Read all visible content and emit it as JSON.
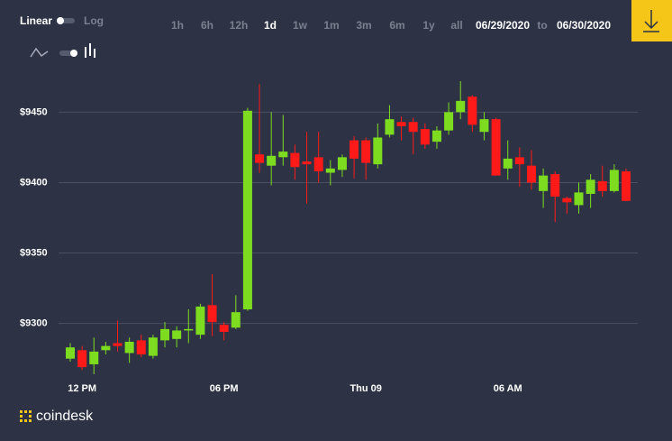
{
  "controls": {
    "scale_linear": "Linear",
    "scale_log": "Log",
    "timeframes": [
      "1h",
      "6h",
      "12h",
      "1d",
      "1w",
      "1m",
      "3m",
      "6m",
      "1y",
      "all"
    ],
    "date_from": "06/29/2020",
    "date_sep": "to",
    "date_to": "06/30/2020"
  },
  "brand": "coindesk",
  "chart_data": {
    "type": "candlestick",
    "categories": [
      null,
      "12 PM",
      null,
      null,
      null,
      null,
      null,
      null,
      null,
      null,
      null,
      null,
      null,
      "06 PM",
      null,
      null,
      null,
      null,
      null,
      null,
      null,
      null,
      null,
      null,
      null,
      "Thu 09",
      null,
      null,
      null,
      null,
      null,
      null,
      null,
      null,
      null,
      null,
      null,
      "06 AM",
      null,
      null,
      null,
      null,
      null,
      null,
      null,
      null,
      null,
      null
    ],
    "open": [
      9275,
      9281,
      9271,
      9281,
      9286,
      9279,
      9288,
      9277,
      9288,
      9289,
      9295,
      9292,
      9313,
      9299,
      9297,
      9310,
      9420,
      9412,
      9418,
      9421,
      9415,
      9418,
      9407,
      9409,
      9430,
      9430,
      9413,
      9434,
      9443,
      9443,
      9438,
      9429,
      9437,
      9450,
      9461,
      9436,
      9445,
      9410,
      9418,
      9412,
      9394,
      9406,
      9389,
      9384,
      9392,
      9401,
      9394,
      9408
    ],
    "high": [
      9286,
      9284,
      9290,
      9287,
      9302,
      9290,
      9292,
      9292,
      9301,
      9298,
      9310,
      9314,
      9335,
      9301,
      9320,
      9453,
      9470,
      9450,
      9448,
      9427,
      9436,
      9436,
      9416,
      9420,
      9433,
      9432,
      9442,
      9455,
      9447,
      9446,
      9442,
      9440,
      9457,
      9472,
      9462,
      9450,
      9446,
      9430,
      9425,
      9423,
      9410,
      9408,
      9390,
      9400,
      9406,
      9412,
      9413,
      9410
    ],
    "low": [
      9273,
      9267,
      9264,
      9278,
      9280,
      9272,
      9276,
      9275,
      9283,
      9283,
      9286,
      9289,
      9291,
      9288,
      9296,
      9309,
      9407,
      9398,
      9412,
      9402,
      9385,
      9400,
      9398,
      9404,
      9403,
      9402,
      9410,
      9432,
      9430,
      9420,
      9424,
      9424,
      9434,
      9445,
      9436,
      9430,
      9405,
      9402,
      9397,
      9395,
      9382,
      9372,
      9378,
      9378,
      9382,
      9390,
      9393,
      9387
    ],
    "close": [
      9283,
      9269,
      9280,
      9284,
      9284,
      9287,
      9278,
      9290,
      9296,
      9295,
      9296,
      9312,
      9301,
      9294,
      9308,
      9451,
      9414,
      9419,
      9422,
      9411,
      9413,
      9408,
      9410,
      9418,
      9417,
      9414,
      9432,
      9445,
      9440,
      9436,
      9427,
      9437,
      9450,
      9458,
      9441,
      9445,
      9405,
      9417,
      9413,
      9400,
      9405,
      9390,
      9386,
      9393,
      9402,
      9394,
      9409,
      9387
    ],
    "up_color": "#7ddc1f",
    "down_color": "#ff1a1a",
    "ylim": [
      9262,
      9472
    ],
    "yticks": [
      {
        "value": 9300,
        "label": "$9300"
      },
      {
        "value": 9350,
        "label": "$9350"
      },
      {
        "value": 9400,
        "label": "$9400"
      },
      {
        "value": 9450,
        "label": "$9450"
      }
    ],
    "grid": true
  }
}
